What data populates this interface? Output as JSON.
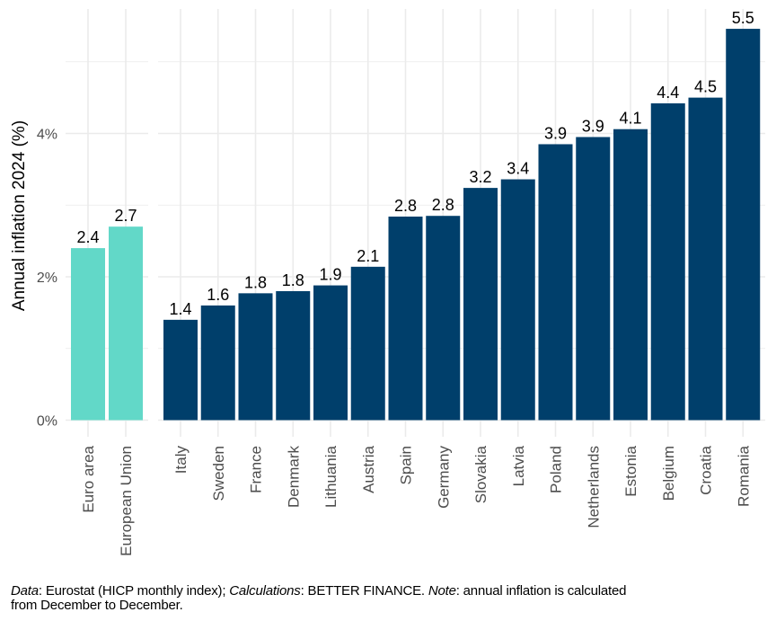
{
  "chart_data": {
    "type": "bar",
    "title": "",
    "xlabel": "",
    "ylabel": "Annual inflation 2024 (%)",
    "ylim": [
      0,
      5.6
    ],
    "yticks": [
      {
        "value": 0,
        "label": "0%"
      },
      {
        "value": 2,
        "label": "2%"
      },
      {
        "value": 4,
        "label": "4%"
      }
    ],
    "minor_gridlines": [
      1,
      3,
      5
    ],
    "grid": true,
    "legend": "none",
    "colors": {
      "aggregate": "#62d8c8",
      "country": "#003f6b",
      "grid": "#ebebeb",
      "tick_label": "#4d4d4d"
    },
    "panels": [
      {
        "name": "aggregates",
        "color_key": "aggregate",
        "categories": [
          "Euro area",
          "European Union"
        ],
        "values": [
          2.4,
          2.7
        ],
        "labels": [
          "2.4",
          "2.7"
        ]
      },
      {
        "name": "countries",
        "color_key": "country",
        "categories": [
          "Italy",
          "Sweden",
          "France",
          "Denmark",
          "Lithuania",
          "Austria",
          "Spain",
          "Germany",
          "Slovakia",
          "Latvia",
          "Poland",
          "Netherlands",
          "Estonia",
          "Belgium",
          "Croatia",
          "Romania"
        ],
        "values": [
          1.4,
          1.6,
          1.77,
          1.8,
          1.88,
          2.14,
          2.84,
          2.85,
          3.24,
          3.36,
          3.85,
          3.95,
          4.06,
          4.42,
          4.5,
          5.46
        ],
        "labels": [
          "1.4",
          "1.6",
          "1.8",
          "1.8",
          "1.9",
          "2.1",
          "2.8",
          "2.8",
          "3.2",
          "3.4",
          "3.9",
          "3.9",
          "4.1",
          "4.4",
          "4.5",
          "5.5"
        ]
      }
    ]
  },
  "caption": {
    "data_label": "Data",
    "data_text": ": Eurostat (HICP monthly index); ",
    "calc_label": "Calculations",
    "calc_text": ": BETTER FINANCE. ",
    "note_label": "Note",
    "note_text": ": annual inflation is calculated from December to December."
  }
}
